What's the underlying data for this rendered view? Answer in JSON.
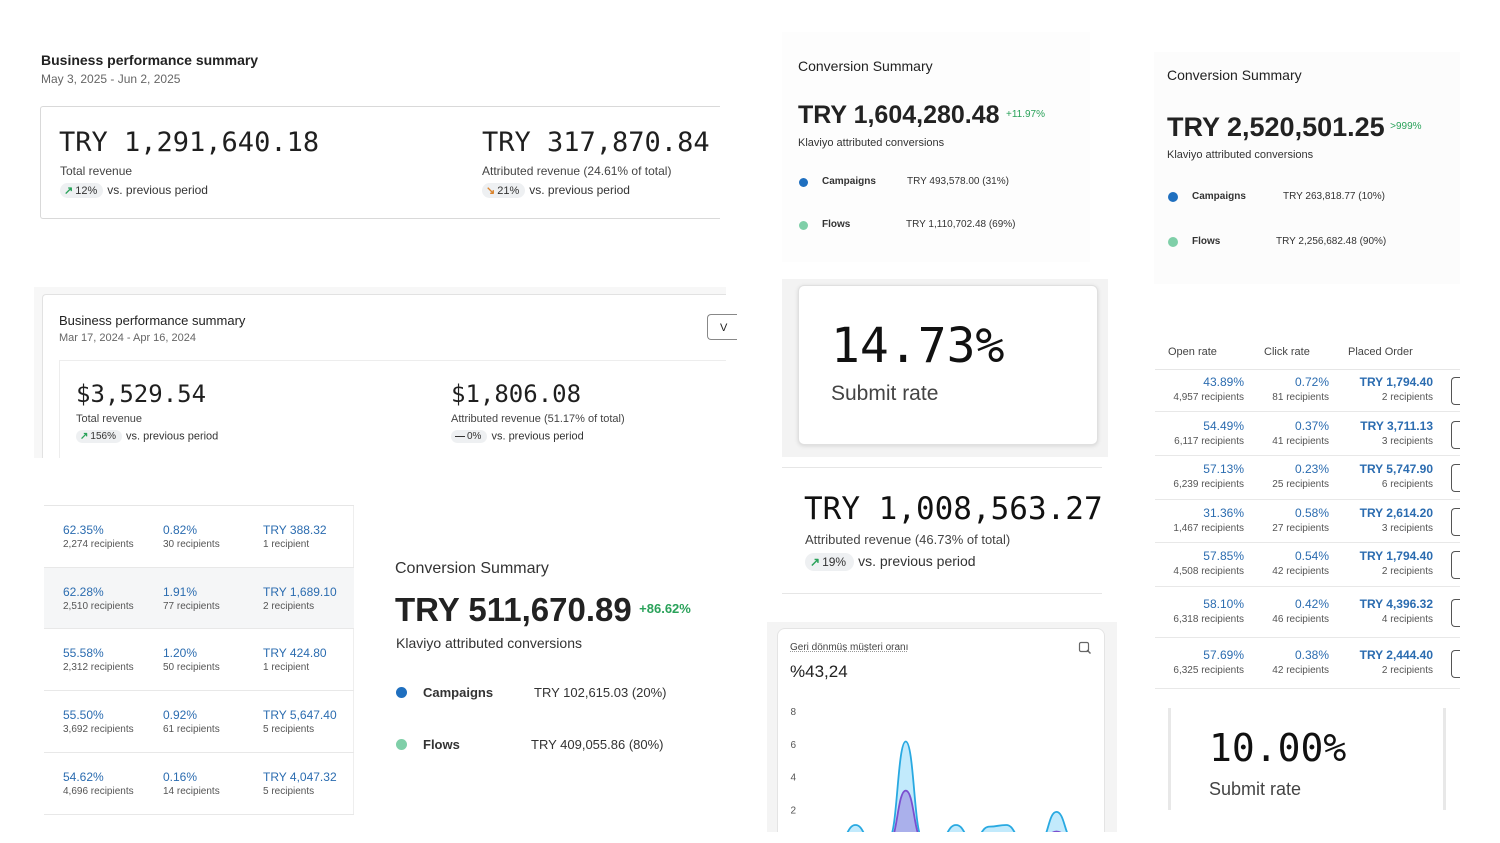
{
  "bps1": {
    "title": "Business performance summary",
    "date": "May 3, 2025 - Jun 2, 2025",
    "total_value": "TRY 1,291,640.18",
    "total_label": "Total revenue",
    "total_change": "12%",
    "attr_value": "TRY 317,870.84",
    "attr_label": "Attributed revenue (24.61% of total)",
    "attr_change": "21%",
    "vs": "vs. previous period"
  },
  "bps2": {
    "title": "Business performance summary",
    "date": "Mar 17, 2024 - Apr 16, 2024",
    "button_label": "V",
    "total_value": "$3,529.54",
    "total_label": "Total revenue",
    "total_change": "156%",
    "attr_value": "$1,806.08",
    "attr_label": "Attributed revenue (51.17% of total)",
    "attr_change": "0%",
    "vs": "vs. previous period"
  },
  "left_table": {
    "rows": [
      {
        "open": "62.35%",
        "open_sub": "2,274 recipients",
        "click": "0.82%",
        "click_sub": "30 recipients",
        "order": "TRY 388.32",
        "order_sub": "1 recipient"
      },
      {
        "open": "62.28%",
        "open_sub": "2,510 recipients",
        "click": "1.91%",
        "click_sub": "77 recipients",
        "order": "TRY 1,689.10",
        "order_sub": "2 recipients"
      },
      {
        "open": "55.58%",
        "open_sub": "2,312 recipients",
        "click": "1.20%",
        "click_sub": "50 recipients",
        "order": "TRY 424.80",
        "order_sub": "1 recipient"
      },
      {
        "open": "55.50%",
        "open_sub": "3,692 recipients",
        "click": "0.92%",
        "click_sub": "61 recipients",
        "order": "TRY 5,647.40",
        "order_sub": "5 recipients"
      },
      {
        "open": "54.62%",
        "open_sub": "4,696 recipients",
        "click": "0.16%",
        "click_sub": "14 recipients",
        "order": "TRY 4,047.32",
        "order_sub": "5 recipients"
      }
    ]
  },
  "conv_large": {
    "title": "Conversion Summary",
    "value": "TRY 511,670.89",
    "change": "+86.62%",
    "label": "Klaviyo attributed conversions",
    "campaigns_label": "Campaigns",
    "campaigns_value": "TRY 102,615.03 (20%)",
    "flows_label": "Flows",
    "flows_value": "TRY 409,055.86 (80%)"
  },
  "conv_mid": {
    "title": "Conversion Summary",
    "value": "TRY 1,604,280.48",
    "change": "+11.97%",
    "label": "Klaviyo attributed conversions",
    "campaigns_label": "Campaigns",
    "campaigns_value": "TRY 493,578.00 (31%)",
    "flows_label": "Flows",
    "flows_value": "TRY 1,110,702.48 (69%)"
  },
  "conv_right": {
    "title": "Conversion Summary",
    "value": "TRY 2,520,501.25",
    "change": ">999%",
    "label": "Klaviyo attributed conversions",
    "campaigns_label": "Campaigns",
    "campaigns_value": "TRY 263,818.77 (10%)",
    "flows_label": "Flows",
    "flows_value": "TRY 2,256,682.48 (90%)"
  },
  "submit1": {
    "value": "14.73%",
    "label": "Submit rate"
  },
  "submit2": {
    "value": "10.00%",
    "label": "Submit rate"
  },
  "attributed_card": {
    "value": "TRY 1,008,563.27",
    "label": "Attributed revenue (46.73% of total)",
    "change": "19%",
    "vs": "vs. previous period"
  },
  "chart_card": {
    "title": "Geri dönmüş müşteri oranı",
    "value": "%43,24"
  },
  "chart_data": {
    "type": "area",
    "title": "Geri dönmüş müşteri oranı",
    "yticks": [
      "2",
      "4",
      "6",
      "8"
    ],
    "ylim": [
      0,
      8
    ],
    "series": [
      {
        "values": [
          0.1,
          0.1,
          1.1,
          0.1,
          0.3,
          6.2,
          0.3,
          0.2,
          1.1,
          0.2,
          1.0,
          1.1,
          0.2,
          0.1,
          1.9,
          0.2,
          0.3
        ]
      },
      {
        "values": [
          0.1,
          0.0,
          0.4,
          0.0,
          0.1,
          3.2,
          0.2,
          0.1,
          0.5,
          0.1,
          0.4,
          0.5,
          0.1,
          0.0,
          0.7,
          0.1,
          0.1
        ]
      }
    ],
    "colors": [
      "#4fc3f7",
      "#8e6ad8"
    ]
  },
  "right_table": {
    "headers": [
      "Open rate",
      "Click rate",
      "Placed Order"
    ],
    "rows": [
      {
        "open": "43.89%",
        "open_sub": "4,957 recipients",
        "click": "0.72%",
        "click_sub": "81 recipients",
        "order": "TRY 1,794.40",
        "order_sub": "2 recipients"
      },
      {
        "open": "54.49%",
        "open_sub": "6,117 recipients",
        "click": "0.37%",
        "click_sub": "41 recipients",
        "order": "TRY 3,711.13",
        "order_sub": "3 recipients"
      },
      {
        "open": "57.13%",
        "open_sub": "6,239 recipients",
        "click": "0.23%",
        "click_sub": "25 recipients",
        "order": "TRY 5,747.90",
        "order_sub": "6 recipients"
      },
      {
        "open": "31.36%",
        "open_sub": "1,467 recipients",
        "click": "0.58%",
        "click_sub": "27 recipients",
        "order": "TRY 2,614.20",
        "order_sub": "3 recipients"
      },
      {
        "open": "57.85%",
        "open_sub": "4,508 recipients",
        "click": "0.54%",
        "click_sub": "42 recipients",
        "order": "TRY 1,794.40",
        "order_sub": "2 recipients"
      },
      {
        "open": "58.10%",
        "open_sub": "6,318 recipients",
        "click": "0.42%",
        "click_sub": "46 recipients",
        "order": "TRY 4,396.32",
        "order_sub": "4 recipients"
      },
      {
        "open": "57.69%",
        "open_sub": "6,325 recipients",
        "click": "0.38%",
        "click_sub": "42 recipients",
        "order": "TRY 2,444.40",
        "order_sub": "2 recipients"
      }
    ]
  }
}
